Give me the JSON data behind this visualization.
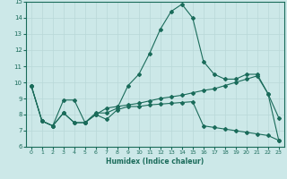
{
  "xlabel": "Humidex (Indice chaleur)",
  "xlim": [
    -0.5,
    23.5
  ],
  "ylim": [
    6,
    15
  ],
  "xticks": [
    0,
    1,
    2,
    3,
    4,
    5,
    6,
    7,
    8,
    9,
    10,
    11,
    12,
    13,
    14,
    15,
    16,
    17,
    18,
    19,
    20,
    21,
    22,
    23
  ],
  "yticks": [
    6,
    7,
    8,
    9,
    10,
    11,
    12,
    13,
    14,
    15
  ],
  "bg_color": "#cce8e8",
  "grid_color": "#b8d8d8",
  "line_color": "#1a6b5a",
  "line1_x": [
    0,
    1,
    2,
    3,
    4,
    5,
    6,
    7,
    8,
    9,
    10,
    11,
    12,
    13,
    14,
    15,
    16,
    17,
    18,
    19,
    20,
    21,
    22,
    23
  ],
  "line1_y": [
    9.8,
    7.6,
    7.3,
    8.9,
    8.9,
    7.5,
    8.1,
    8.1,
    8.4,
    9.8,
    10.5,
    11.8,
    13.3,
    14.4,
    14.85,
    14.0,
    11.3,
    10.5,
    10.2,
    10.2,
    10.5,
    10.5,
    9.3,
    7.8
  ],
  "line2_x": [
    0,
    1,
    2,
    3,
    4,
    5,
    6,
    7,
    8,
    9,
    10,
    11,
    12,
    13,
    14,
    15,
    16,
    17,
    18,
    19,
    20,
    21,
    22,
    23
  ],
  "line2_y": [
    9.8,
    7.6,
    7.3,
    8.1,
    7.5,
    7.5,
    8.0,
    8.4,
    8.5,
    8.6,
    8.7,
    8.85,
    9.0,
    9.1,
    9.2,
    9.35,
    9.5,
    9.6,
    9.8,
    10.0,
    10.2,
    10.4,
    9.3,
    6.4
  ],
  "line3_x": [
    0,
    1,
    2,
    3,
    4,
    5,
    6,
    7,
    8,
    9,
    10,
    11,
    12,
    13,
    14,
    15,
    16,
    17,
    18,
    19,
    20,
    21,
    22,
    23
  ],
  "line3_y": [
    9.8,
    7.6,
    7.3,
    8.1,
    7.5,
    7.5,
    8.0,
    7.7,
    8.3,
    8.5,
    8.5,
    8.6,
    8.65,
    8.7,
    8.75,
    8.8,
    7.3,
    7.2,
    7.1,
    7.0,
    6.9,
    6.8,
    6.7,
    6.4
  ]
}
